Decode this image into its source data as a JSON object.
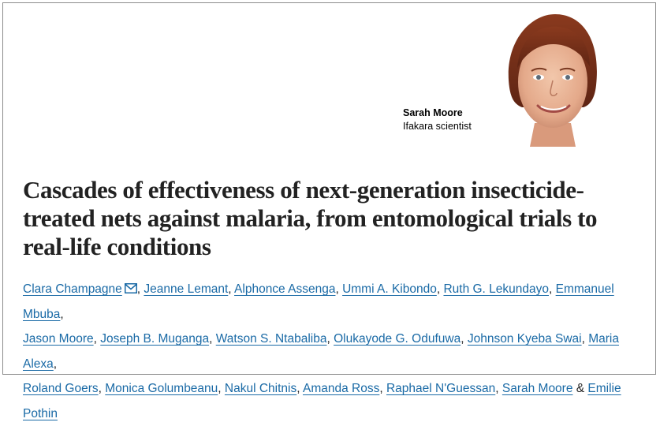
{
  "scientist": {
    "name": "Sarah Moore",
    "role": "Ifakara scientist",
    "photo_icon": "portrait-photo"
  },
  "article": {
    "title": "Cascades of effectiveness of next-generation insecticide-treated nets against malaria, from entomological trials to real-life conditions",
    "title_lines": [
      "Cascades of effectiveness of next-generation insecticide-",
      "treated nets against malaria, from entomological trials to",
      "real-life conditions"
    ],
    "authors": [
      "Clara Champagne",
      "Jeanne Lemant",
      "Alphonce Assenga",
      "Ummi A. Kibondo",
      "Ruth G. Lekundayo",
      "Emmanuel Mbuba",
      "Jason Moore",
      "Joseph B. Muganga",
      "Watson S. Ntabaliba",
      "Olukayode G. Odufuwa",
      "Johnson Kyeba Swai",
      "Maria Alexa",
      "Roland Goers",
      "Monica Golumbeanu",
      "Nakul Chitnis",
      "Amanda Ross",
      "Raphael N'Guessan",
      "Sarah Moore",
      "Emilie Pothin"
    ],
    "separator": ", ",
    "last_separator": " & ",
    "mail_icon": "envelope-icon"
  }
}
